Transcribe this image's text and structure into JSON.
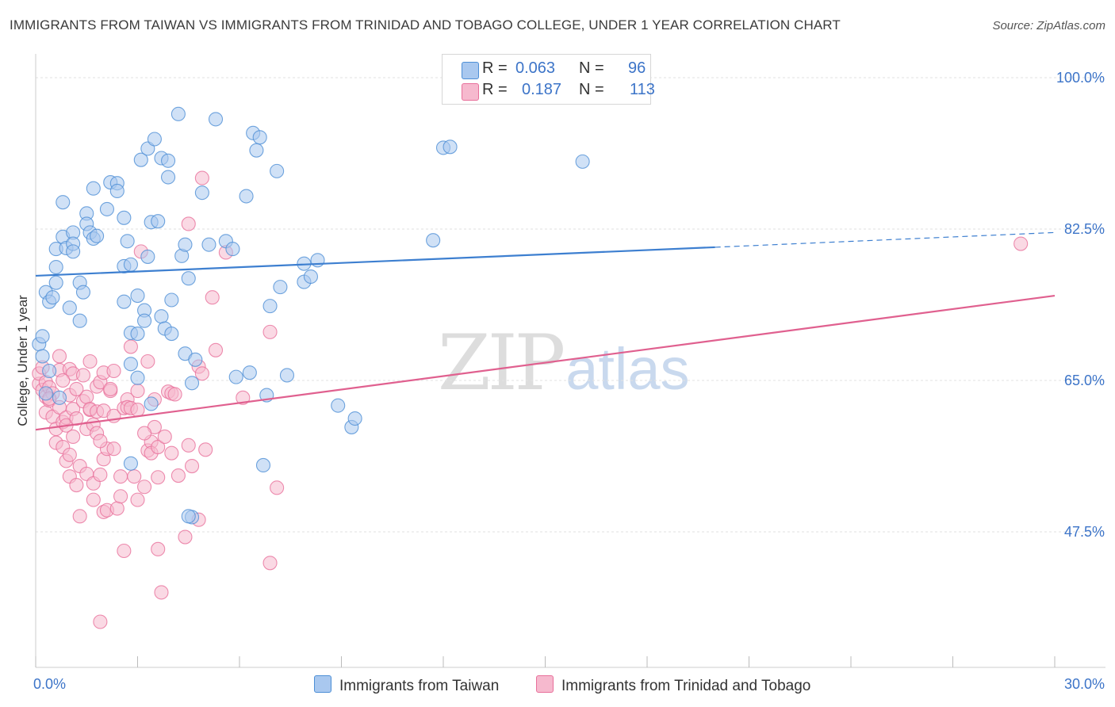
{
  "title": "IMMIGRANTS FROM TAIWAN VS IMMIGRANTS FROM TRINIDAD AND TOBAGO COLLEGE, UNDER 1 YEAR CORRELATION CHART",
  "source": "Source: ZipAtlas.com",
  "watermark": {
    "zip": "ZIP",
    "atlas": "atlas"
  },
  "colors": {
    "blue": "#4d8fd6",
    "blue_fill": "#a9c8ef",
    "pink": "#e8709b",
    "pink_fill": "#f6b9ce",
    "axis_label": "#3c74c8",
    "grid": "#dddddd"
  },
  "legend": {
    "rows": [
      {
        "r_label": "R =",
        "r_value": "0.063",
        "n_label": "N =",
        "n_value": "96"
      },
      {
        "r_label": "R =",
        "r_value": "0.187",
        "n_label": "N =",
        "n_value": "113"
      }
    ]
  },
  "chart_data": {
    "type": "scatter",
    "title": "IMMIGRANTS FROM TAIWAN VS IMMIGRANTS FROM TRINIDAD AND TOBAGO COLLEGE, UNDER 1 YEAR CORRELATION CHART",
    "xlabel": "",
    "ylabel": "College, Under 1 year",
    "xlim": [
      0,
      30
    ],
    "ylim": [
      30,
      100
    ],
    "x_tick_labels": [
      "0.0%",
      "30.0%"
    ],
    "y_ticks": [
      47.5,
      65.0,
      82.5,
      100.0
    ],
    "y_tick_labels": [
      "47.5%",
      "65.0%",
      "82.5%",
      "100.0%"
    ],
    "grid": true,
    "series": [
      {
        "name": "Immigrants from Taiwan",
        "color": "#4d8fd6",
        "R": 0.063,
        "N": 96,
        "trend": {
          "x0": 0,
          "y0": 77.1,
          "x1": 20.0,
          "y1": 80.4,
          "dashed_to_x": 30,
          "dashed_to_y": 82.1
        },
        "points": [
          [
            0.1,
            69.2
          ],
          [
            0.2,
            67.8
          ],
          [
            0.3,
            63.5
          ],
          [
            0.4,
            66.1
          ],
          [
            0.3,
            75.2
          ],
          [
            0.4,
            74.1
          ],
          [
            0.5,
            74.6
          ],
          [
            0.6,
            76.3
          ],
          [
            0.6,
            78.1
          ],
          [
            0.6,
            80.2
          ],
          [
            0.8,
            81.6
          ],
          [
            0.9,
            80.3
          ],
          [
            0.8,
            85.6
          ],
          [
            1.1,
            82.1
          ],
          [
            1.1,
            80.8
          ],
          [
            1.1,
            79.9
          ],
          [
            1.0,
            73.4
          ],
          [
            1.3,
            76.3
          ],
          [
            1.4,
            75.2
          ],
          [
            1.5,
            84.3
          ],
          [
            1.5,
            83.1
          ],
          [
            1.6,
            82.1
          ],
          [
            1.7,
            81.4
          ],
          [
            1.8,
            81.7
          ],
          [
            1.3,
            71.9
          ],
          [
            1.7,
            87.2
          ],
          [
            2.1,
            84.8
          ],
          [
            2.2,
            87.9
          ],
          [
            2.4,
            87.8
          ],
          [
            2.4,
            86.9
          ],
          [
            2.6,
            78.2
          ],
          [
            2.6,
            83.8
          ],
          [
            2.7,
            81.1
          ],
          [
            2.8,
            78.4
          ],
          [
            2.6,
            74.1
          ],
          [
            2.8,
            70.5
          ],
          [
            2.8,
            66.9
          ],
          [
            3.0,
            65.3
          ],
          [
            3.0,
            74.8
          ],
          [
            3.1,
            90.5
          ],
          [
            3.0,
            70.4
          ],
          [
            3.2,
            73.1
          ],
          [
            3.2,
            71.9
          ],
          [
            3.3,
            91.8
          ],
          [
            3.3,
            79.3
          ],
          [
            3.4,
            83.3
          ],
          [
            3.5,
            92.9
          ],
          [
            3.6,
            83.4
          ],
          [
            3.7,
            90.7
          ],
          [
            3.7,
            72.4
          ],
          [
            3.8,
            71.0
          ],
          [
            3.9,
            90.4
          ],
          [
            3.9,
            88.5
          ],
          [
            4.0,
            74.3
          ],
          [
            4.0,
            70.4
          ],
          [
            4.2,
            95.8
          ],
          [
            4.3,
            79.4
          ],
          [
            4.4,
            80.7
          ],
          [
            4.4,
            68.1
          ],
          [
            4.5,
            76.8
          ],
          [
            4.6,
            64.7
          ],
          [
            4.6,
            49.2
          ],
          [
            4.7,
            67.4
          ],
          [
            4.9,
            86.7
          ],
          [
            5.1,
            80.7
          ],
          [
            5.3,
            95.2
          ],
          [
            5.6,
            81.1
          ],
          [
            5.8,
            80.2
          ],
          [
            5.9,
            65.4
          ],
          [
            6.2,
            86.3
          ],
          [
            6.3,
            65.9
          ],
          [
            6.4,
            93.6
          ],
          [
            6.5,
            91.6
          ],
          [
            6.6,
            93.1
          ],
          [
            6.7,
            55.2
          ],
          [
            6.8,
            63.3
          ],
          [
            6.9,
            73.6
          ],
          [
            7.1,
            89.2
          ],
          [
            7.2,
            75.8
          ],
          [
            7.4,
            65.6
          ],
          [
            7.9,
            78.5
          ],
          [
            7.9,
            76.4
          ],
          [
            8.1,
            77.0
          ],
          [
            8.3,
            78.9
          ],
          [
            8.9,
            62.1
          ],
          [
            9.3,
            59.6
          ],
          [
            9.4,
            60.6
          ],
          [
            11.7,
            81.2
          ],
          [
            12.0,
            91.9
          ],
          [
            12.2,
            92.0
          ],
          [
            16.1,
            90.3
          ],
          [
            4.5,
            49.3
          ],
          [
            3.4,
            62.3
          ],
          [
            2.8,
            55.4
          ],
          [
            0.2,
            70.1
          ],
          [
            0.7,
            63.0
          ]
        ]
      },
      {
        "name": "Immigrants from Trinidad and Tobago",
        "color": "#e8709b",
        "R": 0.187,
        "N": 113,
        "trend": {
          "x0": 0,
          "y0": 59.3,
          "x1": 30,
          "y1": 74.8
        },
        "points": [
          [
            0.1,
            64.6
          ],
          [
            0.1,
            65.8
          ],
          [
            0.2,
            63.9
          ],
          [
            0.2,
            66.5
          ],
          [
            0.3,
            63.1
          ],
          [
            0.3,
            64.8
          ],
          [
            0.3,
            61.3
          ],
          [
            0.4,
            64.2
          ],
          [
            0.4,
            62.7
          ],
          [
            0.5,
            63.5
          ],
          [
            0.5,
            60.8
          ],
          [
            0.6,
            57.8
          ],
          [
            0.6,
            59.4
          ],
          [
            0.7,
            61.9
          ],
          [
            0.7,
            67.8
          ],
          [
            0.7,
            66.2
          ],
          [
            0.8,
            60.2
          ],
          [
            0.8,
            57.3
          ],
          [
            0.9,
            55.7
          ],
          [
            0.9,
            60.7
          ],
          [
            0.9,
            59.8
          ],
          [
            1.0,
            53.9
          ],
          [
            1.0,
            63.3
          ],
          [
            1.0,
            66.3
          ],
          [
            1.1,
            65.8
          ],
          [
            1.1,
            58.5
          ],
          [
            1.1,
            61.7
          ],
          [
            1.2,
            52.9
          ],
          [
            1.2,
            60.6
          ],
          [
            1.3,
            55.1
          ],
          [
            1.3,
            49.3
          ],
          [
            1.4,
            65.6
          ],
          [
            1.4,
            62.6
          ],
          [
            1.5,
            59.4
          ],
          [
            1.5,
            54.2
          ],
          [
            1.5,
            63.1
          ],
          [
            1.6,
            61.6
          ],
          [
            1.6,
            61.7
          ],
          [
            1.6,
            67.2
          ],
          [
            1.7,
            59.9
          ],
          [
            1.7,
            53.1
          ],
          [
            1.7,
            51.2
          ],
          [
            1.8,
            61.4
          ],
          [
            1.8,
            64.3
          ],
          [
            1.8,
            58.9
          ],
          [
            1.9,
            54.1
          ],
          [
            1.9,
            64.8
          ],
          [
            1.9,
            37.1
          ],
          [
            2.0,
            65.9
          ],
          [
            2.0,
            61.5
          ],
          [
            2.0,
            55.9
          ],
          [
            2.0,
            49.8
          ],
          [
            2.1,
            57.1
          ],
          [
            2.1,
            50.0
          ],
          [
            2.2,
            63.8
          ],
          [
            2.2,
            64.0
          ],
          [
            2.3,
            60.9
          ],
          [
            2.3,
            57.1
          ],
          [
            2.4,
            50.2
          ],
          [
            2.5,
            53.9
          ],
          [
            2.5,
            51.6
          ],
          [
            2.6,
            45.3
          ],
          [
            2.6,
            61.8
          ],
          [
            2.7,
            62.8
          ],
          [
            2.7,
            61.9
          ],
          [
            2.8,
            68.9
          ],
          [
            2.8,
            61.8
          ],
          [
            2.9,
            53.9
          ],
          [
            3.0,
            51.2
          ],
          [
            3.0,
            63.8
          ],
          [
            3.0,
            61.6
          ],
          [
            3.1,
            79.9
          ],
          [
            3.2,
            52.7
          ],
          [
            3.3,
            56.9
          ],
          [
            3.3,
            67.2
          ],
          [
            3.4,
            57.9
          ],
          [
            3.4,
            56.6
          ],
          [
            3.5,
            62.8
          ],
          [
            3.5,
            59.6
          ],
          [
            3.6,
            57.3
          ],
          [
            3.6,
            53.8
          ],
          [
            3.6,
            45.5
          ],
          [
            3.7,
            40.5
          ],
          [
            3.8,
            58.5
          ],
          [
            3.9,
            63.7
          ],
          [
            4.0,
            56.6
          ],
          [
            4.0,
            63.5
          ],
          [
            4.1,
            63.4
          ],
          [
            4.2,
            54.0
          ],
          [
            4.4,
            46.9
          ],
          [
            4.5,
            57.5
          ],
          [
            4.5,
            83.1
          ],
          [
            4.6,
            55.1
          ],
          [
            4.8,
            48.9
          ],
          [
            4.8,
            66.6
          ],
          [
            4.9,
            65.8
          ],
          [
            4.9,
            88.4
          ],
          [
            5.0,
            57.0
          ],
          [
            5.2,
            74.6
          ],
          [
            5.3,
            68.5
          ],
          [
            5.6,
            79.8
          ],
          [
            6.1,
            63.0
          ],
          [
            6.9,
            43.9
          ],
          [
            6.9,
            70.6
          ],
          [
            7.1,
            52.6
          ],
          [
            0.4,
            62.9
          ],
          [
            1.2,
            64.0
          ],
          [
            2.3,
            66.1
          ],
          [
            3.2,
            58.9
          ],
          [
            1.0,
            56.4
          ],
          [
            0.8,
            65.0
          ],
          [
            29.0,
            80.8
          ],
          [
            1.9,
            58.0
          ]
        ]
      }
    ]
  },
  "bottom_legend": [
    "Immigrants from Taiwan",
    "Immigrants from Trinidad and Tobago"
  ]
}
